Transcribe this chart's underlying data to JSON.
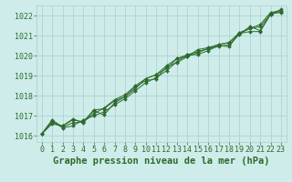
{
  "title": "Graphe pression niveau de la mer (hPa)",
  "x_labels": [
    "0",
    "1",
    "2",
    "3",
    "4",
    "5",
    "6",
    "7",
    "8",
    "9",
    "10",
    "11",
    "12",
    "13",
    "14",
    "15",
    "16",
    "17",
    "18",
    "19",
    "20",
    "21",
    "22",
    "23"
  ],
  "x_values": [
    0,
    1,
    2,
    3,
    4,
    5,
    6,
    7,
    8,
    9,
    10,
    11,
    12,
    13,
    14,
    15,
    16,
    17,
    18,
    19,
    20,
    21,
    22,
    23
  ],
  "series": [
    [
      1016.1,
      1016.6,
      1016.5,
      1016.8,
      1016.7,
      1017.1,
      1017.4,
      1017.8,
      1018.05,
      1018.5,
      1018.85,
      1019.05,
      1019.5,
      1019.85,
      1019.95,
      1020.3,
      1020.4,
      1020.55,
      1020.65,
      1021.1,
      1021.35,
      1021.55,
      1022.15,
      1022.25
    ],
    [
      1016.1,
      1016.75,
      1016.4,
      1016.5,
      1016.8,
      1017.0,
      1017.2,
      1017.55,
      1017.85,
      1018.25,
      1018.65,
      1018.9,
      1019.25,
      1019.7,
      1020.05,
      1020.05,
      1020.25,
      1020.5,
      1020.45,
      1021.1,
      1021.2,
      1021.2,
      1022.05,
      1022.2
    ],
    [
      1016.1,
      1016.8,
      1016.45,
      1016.65,
      1016.7,
      1017.3,
      1017.35,
      1017.75,
      1017.95,
      1018.45,
      1018.75,
      1018.85,
      1019.45,
      1019.65,
      1019.95,
      1020.15,
      1020.35,
      1020.45,
      1020.55,
      1021.05,
      1021.45,
      1021.25,
      1022.1,
      1022.15
    ],
    [
      1016.1,
      1016.65,
      1016.5,
      1016.85,
      1016.65,
      1017.25,
      1017.05,
      1017.65,
      1017.95,
      1018.35,
      1018.85,
      1019.05,
      1019.35,
      1019.85,
      1020.05,
      1020.2,
      1020.35,
      1020.55,
      1020.65,
      1021.15,
      1021.35,
      1021.45,
      1022.05,
      1022.3
    ]
  ],
  "line_color": "#2d6a2d",
  "marker": "D",
  "marker_size": 2.0,
  "bg_color": "#ceecea",
  "grid_color": "#aacfcc",
  "ylim": [
    1015.7,
    1022.5
  ],
  "yticks": [
    1016,
    1017,
    1018,
    1019,
    1020,
    1021,
    1022
  ],
  "title_fontsize": 7.5,
  "tick_fontsize": 6.0
}
